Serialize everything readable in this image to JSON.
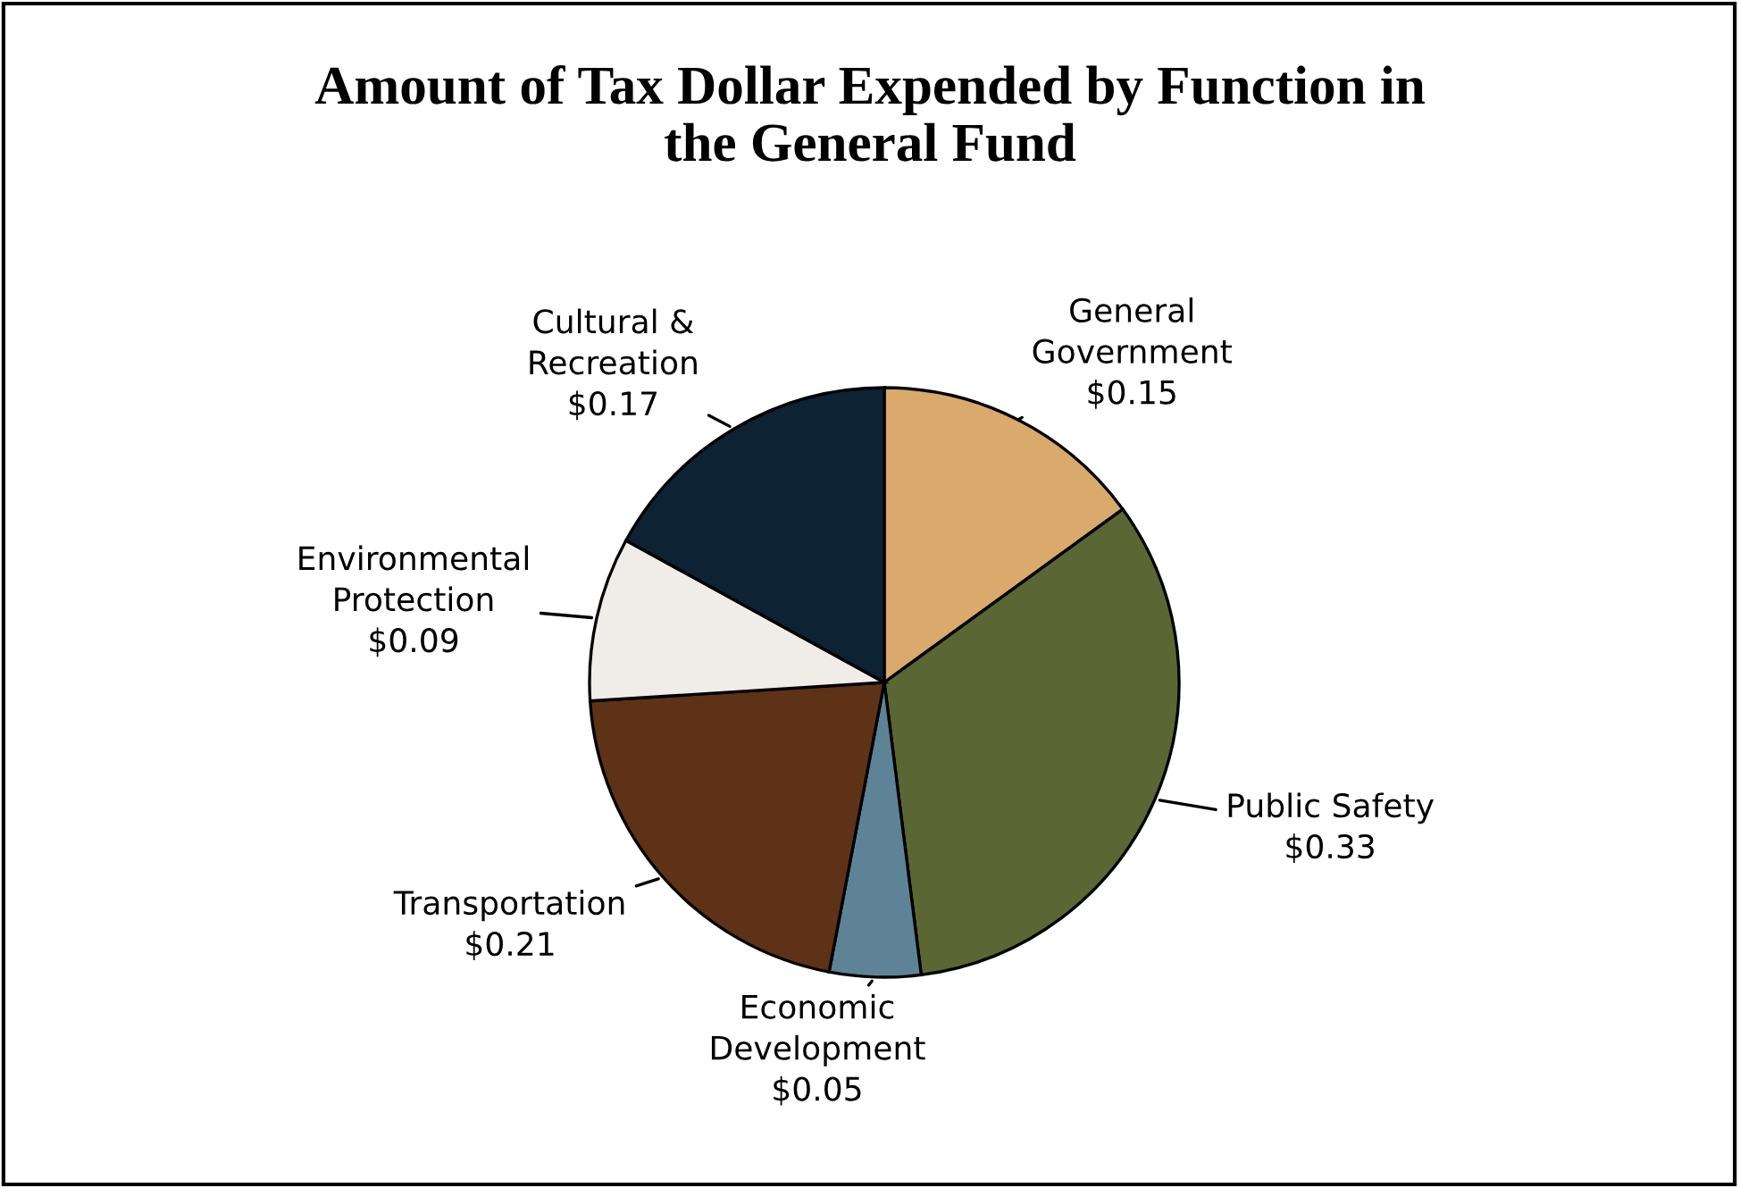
{
  "chart_data": {
    "type": "pie",
    "title": "Amount of Tax Dollar Expended by Function in\nthe General Fund",
    "categories": [
      "General\nGovernment",
      "Public Safety",
      "Economic\nDevelopment",
      "Transportation",
      "Environmental\nProtection",
      "Cultural &\nRecreation"
    ],
    "values": [
      0.15,
      0.33,
      0.05,
      0.21,
      0.09,
      0.17
    ],
    "value_labels": [
      "$0.15",
      "$0.33",
      "$0.05",
      "$0.21",
      "$0.09",
      "$0.17"
    ],
    "colors": [
      "#d9aa6b",
      "#5b6635",
      "#5f8396",
      "#5e3217",
      "#f0ece8",
      "#0d2233"
    ],
    "legend": false
  }
}
